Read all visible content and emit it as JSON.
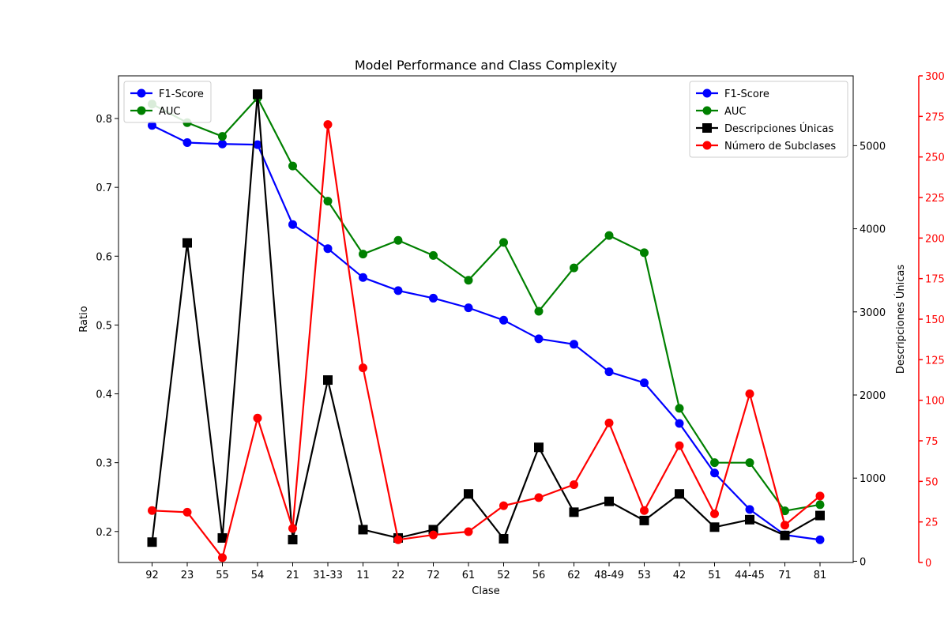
{
  "chart_data": {
    "type": "line",
    "title": "Model Performance and Class Complexity",
    "xlabel": "Clase",
    "ylabel_left": "Ratio",
    "ylabel_right": "Descripciones Únicas",
    "categories": [
      "92",
      "23",
      "55",
      "54",
      "21",
      "31-33",
      "11",
      "22",
      "72",
      "61",
      "52",
      "56",
      "62",
      "48-49",
      "53",
      "42",
      "51",
      "44-45",
      "71",
      "81"
    ],
    "axes": {
      "left": {
        "ylim": [
          0.155,
          0.862
        ],
        "ticks": [
          0.2,
          0.3,
          0.4,
          0.5,
          0.6,
          0.7,
          0.8
        ],
        "tick_labels": [
          "0.2",
          "0.3",
          "0.4",
          "0.5",
          "0.6",
          "0.7",
          "0.8"
        ]
      },
      "right1": {
        "ylim": [
          -15,
          5840
        ],
        "ticks": [
          0,
          1000,
          2000,
          3000,
          4000,
          5000
        ],
        "tick_labels": [
          "0",
          "1000",
          "2000",
          "3000",
          "4000",
          "5000"
        ]
      },
      "right2": {
        "ylim": [
          0,
          300
        ],
        "ticks": [
          0,
          25,
          50,
          75,
          100,
          125,
          150,
          175,
          200,
          225,
          250,
          275,
          300
        ],
        "tick_labels": [
          "0",
          "25",
          "50",
          "75",
          "100",
          "125",
          "150",
          "175",
          "200",
          "225",
          "250",
          "275",
          "300"
        ],
        "color": "#ff0000"
      }
    },
    "series": [
      {
        "name": "F1-Score",
        "axis": "left",
        "color": "#0000ff",
        "marker": "circle",
        "values": [
          0.79,
          0.765,
          0.763,
          0.762,
          0.646,
          0.611,
          0.569,
          0.55,
          0.539,
          0.525,
          0.507,
          0.48,
          0.472,
          0.432,
          0.416,
          0.357,
          0.285,
          0.232,
          0.195,
          0.188
        ]
      },
      {
        "name": "AUC",
        "axis": "left",
        "color": "#008000",
        "marker": "circle",
        "values": [
          0.821,
          0.794,
          0.774,
          0.83,
          0.731,
          0.68,
          0.603,
          0.623,
          0.601,
          0.565,
          0.62,
          0.52,
          0.583,
          0.63,
          0.605,
          0.379,
          0.3,
          0.3,
          0.23,
          0.239
        ]
      },
      {
        "name": "Descripciones Únicas",
        "axis": "right1",
        "color": "#000000",
        "marker": "square",
        "values": [
          230,
          3830,
          280,
          5620,
          260,
          2180,
          380,
          280,
          380,
          810,
          270,
          1370,
          590,
          720,
          490,
          810,
          410,
          500,
          310,
          550
        ]
      },
      {
        "name": "Número de Subclases",
        "axis": "right2",
        "color": "#ff0000",
        "marker": "circle",
        "values": [
          32,
          31,
          3,
          89,
          21,
          270,
          120,
          14,
          17,
          19,
          35,
          40,
          48,
          86,
          32,
          72,
          30,
          104,
          23,
          41
        ]
      }
    ],
    "legends": [
      {
        "position": "top-left",
        "entries": [
          "F1-Score",
          "AUC"
        ]
      },
      {
        "position": "top-right",
        "entries": [
          "F1-Score",
          "AUC",
          "Descripciones Únicas",
          "Número de Subclases"
        ]
      }
    ],
    "grid": false
  }
}
